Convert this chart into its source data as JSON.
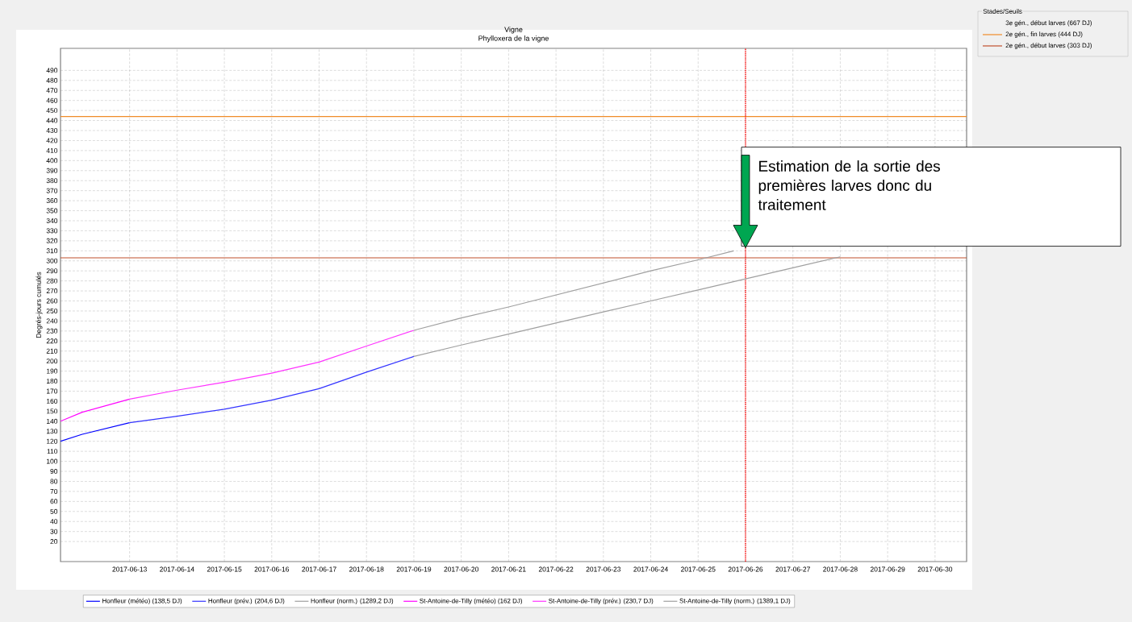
{
  "chart_data": {
    "type": "line",
    "title": "Vigne",
    "subtitle": "Phylloxera de la vigne",
    "ylabel": "Degrés-jours cumulés",
    "legend_title": "Stades/Seuils",
    "xlim": [
      "2017-06-11T13:00",
      "2017-06-30T16:00"
    ],
    "xticks": [
      "2017-06-13",
      "2017-06-14",
      "2017-06-15",
      "2017-06-16",
      "2017-06-17",
      "2017-06-18",
      "2017-06-19",
      "2017-06-20",
      "2017-06-21",
      "2017-06-22",
      "2017-06-23",
      "2017-06-24",
      "2017-06-25",
      "2017-06-26",
      "2017-06-27",
      "2017-06-28",
      "2017-06-29",
      "2017-06-30"
    ],
    "ylim": [
      0,
      512
    ],
    "yticks": [
      20,
      30,
      40,
      50,
      60,
      70,
      80,
      90,
      100,
      110,
      120,
      130,
      140,
      150,
      160,
      170,
      180,
      190,
      200,
      210,
      220,
      230,
      240,
      250,
      260,
      270,
      280,
      290,
      300,
      310,
      320,
      330,
      340,
      350,
      360,
      370,
      380,
      390,
      400,
      410,
      420,
      430,
      440,
      450,
      460,
      470,
      480,
      490
    ],
    "grid": true,
    "legend": "bottom",
    "series": [
      {
        "name": "Honfleur (météo) (138,5 DJ)",
        "color": "#0000ff",
        "x": [
          "2017-06-11T13:00",
          "2017-06-12",
          "2017-06-13"
        ],
        "values": [
          120,
          127,
          138.5
        ]
      },
      {
        "name": "Honfleur (prév.) (204,6 DJ)",
        "color": "#3333ff",
        "x": [
          "2017-06-13",
          "2017-06-14",
          "2017-06-15",
          "2017-06-16",
          "2017-06-17",
          "2017-06-18",
          "2017-06-19"
        ],
        "values": [
          138.5,
          145,
          152,
          161,
          172.5,
          189,
          204.6
        ]
      },
      {
        "name": "Honfleur (norm.) (1289,2 DJ)",
        "color": "#a0a0a0",
        "x": [
          "2017-06-19",
          "2017-06-20",
          "2017-06-21",
          "2017-06-22",
          "2017-06-23",
          "2017-06-24",
          "2017-06-25",
          "2017-06-26",
          "2017-06-27",
          "2017-06-28"
        ],
        "values": [
          204.6,
          216,
          227,
          238,
          249,
          260,
          271,
          282,
          293,
          304
        ]
      },
      {
        "name": "St-Antoine-de-Tilly (météo) (162 DJ)",
        "color": "#ff00ff",
        "x": [
          "2017-06-11T13:00",
          "2017-06-12",
          "2017-06-13"
        ],
        "values": [
          140,
          149,
          162
        ]
      },
      {
        "name": "St-Antoine-de-Tilly (prév.) (230,7 DJ)",
        "color": "#ff33ff",
        "x": [
          "2017-06-13",
          "2017-06-14",
          "2017-06-15",
          "2017-06-16",
          "2017-06-17",
          "2017-06-18",
          "2017-06-19"
        ],
        "values": [
          162,
          171,
          179,
          188,
          199,
          215,
          230.7
        ]
      },
      {
        "name": "St-Antoine-de-Tilly (norm.) (1389,1 DJ)",
        "color": "#a0a0a0",
        "x": [
          "2017-06-19",
          "2017-06-20",
          "2017-06-21",
          "2017-06-22",
          "2017-06-23",
          "2017-06-24",
          "2017-06-25",
          "2017-06-25T18:00"
        ],
        "values": [
          230.7,
          243,
          254,
          266,
          278,
          290,
          301,
          310
        ]
      }
    ],
    "ref_lines": [
      {
        "axis": "y",
        "value": 303,
        "label": "2e gén., début larves (303 DJ)",
        "color": "#c0502d"
      },
      {
        "axis": "y",
        "value": 444,
        "label": "2e gén., fin larves (444 DJ)",
        "color": "#f08c28"
      },
      {
        "axis": "x",
        "value": "2017-06-26",
        "color": "#ff0000",
        "line_style": "dotted"
      }
    ],
    "annotations": [
      "3e gén., début larves (667 DJ)",
      {
        "text": "Estimation de la sortie des premières larves donc du traitement",
        "x": "2017-06-26",
        "y": 313
      }
    ]
  }
}
